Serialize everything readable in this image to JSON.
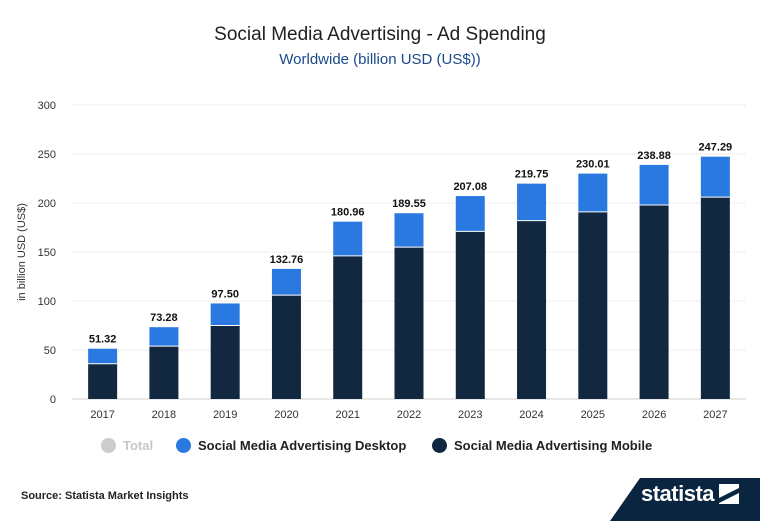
{
  "header": {
    "title": "Social Media Advertising - Ad Spending",
    "subtitle": "Worldwide (billion USD (US$))"
  },
  "footer": {
    "source": "Source: Statista Market Insights",
    "logo_text": "statista"
  },
  "colors": {
    "desktop": "#2a79e0",
    "mobile": "#122840",
    "total": "#cccccc",
    "grid": "#dedede",
    "footer_band": "#0a2540"
  },
  "chart_data": {
    "type": "bar",
    "stacked": true,
    "title": "Social Media Advertising - Ad Spending",
    "subtitle": "Worldwide (billion USD (US$))",
    "xlabel": "",
    "ylabel": "in billion USD (US$)",
    "ylim": [
      0,
      300
    ],
    "yticks": [
      0,
      50,
      100,
      150,
      200,
      250,
      300
    ],
    "grid": true,
    "legend_position": "bottom",
    "categories": [
      "2017",
      "2018",
      "2019",
      "2020",
      "2021",
      "2022",
      "2023",
      "2024",
      "2025",
      "2026",
      "2027"
    ],
    "totals": [
      "51.32",
      "73.28",
      "97.50",
      "132.76",
      "180.96",
      "189.55",
      "207.08",
      "219.75",
      "230.01",
      "238.88",
      "247.29"
    ],
    "series": [
      {
        "name": "Social Media Advertising Mobile",
        "values": [
          36,
          54,
          75,
          106,
          146,
          155,
          171,
          182,
          191,
          198,
          206
        ]
      },
      {
        "name": "Social Media Advertising Desktop",
        "values": [
          15.32,
          19.28,
          22.5,
          26.76,
          34.96,
          34.55,
          36.08,
          37.75,
          39.01,
          40.88,
          41.29
        ]
      }
    ],
    "legend": [
      {
        "name": "Total",
        "enabled": false
      },
      {
        "name": "Social Media Advertising Desktop",
        "enabled": true
      },
      {
        "name": "Social Media Advertising Mobile",
        "enabled": true
      }
    ]
  }
}
